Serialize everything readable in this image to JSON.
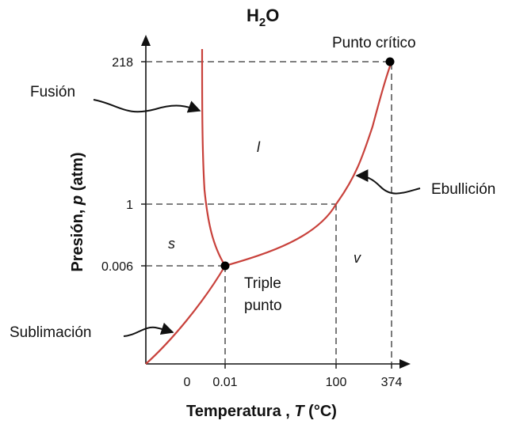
{
  "title": {
    "main": "H",
    "sub": "2",
    "tail": "O"
  },
  "colors": {
    "curve": "#c8413b",
    "axis": "#111111",
    "guide": "#333333",
    "point": "#000000"
  },
  "axes": {
    "x_title_main": "Temperatura",
    "x_title_sep": " , ",
    "x_title_sym": "T",
    "x_title_unit": " (°C)",
    "y_title_main": "Presión,",
    "y_title_sym": "p",
    "y_title_unit": " (atm)",
    "x_ticks": [
      "0",
      "0.01",
      "100",
      "374"
    ],
    "y_ticks": [
      "218",
      "1",
      "0.006"
    ]
  },
  "labels": {
    "critical_point": "Punto crítico",
    "triple_line1": "Triple",
    "triple_line2": "punto",
    "fusion": "Fusión",
    "boiling": "Ebullición",
    "sublimation": "Sublimación"
  },
  "phases": {
    "solid": "s",
    "liquid": "l",
    "vapor": "v"
  }
}
